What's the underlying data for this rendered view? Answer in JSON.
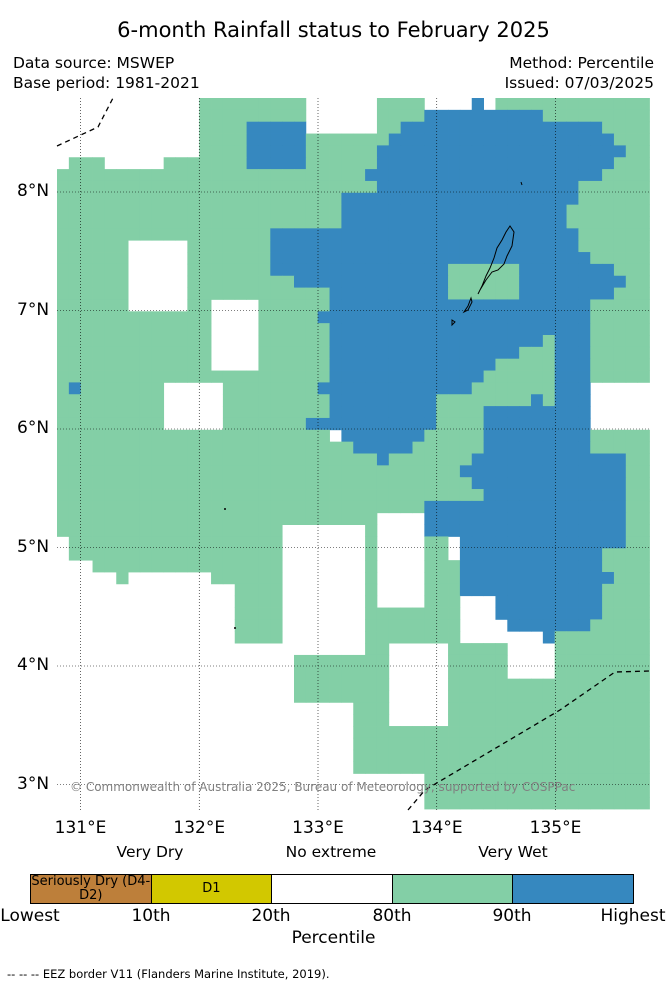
{
  "title": "6-month Rainfall status to February 2025",
  "meta": {
    "data_source": "Data source: MSWEP",
    "base_period": "Base period: 1981-2021",
    "method": "Method: Percentile",
    "issued": "Issued: 07/03/2025"
  },
  "map": {
    "lon_range": [
      130.9,
      135.8
    ],
    "lat_range": [
      2.8,
      8.8
    ],
    "lon_ticks": [
      "131°E",
      "132°E",
      "133°E",
      "134°E",
      "135°E"
    ],
    "lat_ticks": [
      "8°N",
      "7°N",
      "6°N",
      "5°N",
      "4°N",
      "3°N"
    ],
    "copyright": "© Commonwealth of Australia 2025, Bureau of Meteorology, supported by COSPPac",
    "colors": {
      "wet": "#83cfa6",
      "very_wet": "#3688bf",
      "island": "#000000",
      "eez": "#000000"
    }
  },
  "legend": {
    "categories": [
      "Very Dry",
      "No extreme",
      "Very Wet"
    ],
    "segments": [
      {
        "label": "Seriously Dry (D4-D2)",
        "color": "#bd7f3a"
      },
      {
        "label": "D1",
        "color": "#d2c800"
      },
      {
        "label": "",
        "color": "#ffffff"
      },
      {
        "label": "",
        "color": "#83cfa6"
      },
      {
        "label": "",
        "color": "#3688bf"
      }
    ],
    "ticks": [
      "Lowest",
      "10th",
      "20th",
      "80th",
      "90th",
      "Highest"
    ],
    "title": "Percentile"
  },
  "footnote": "-- -- -- EEZ border V11 (Flanders Marine Institute, 2019)."
}
